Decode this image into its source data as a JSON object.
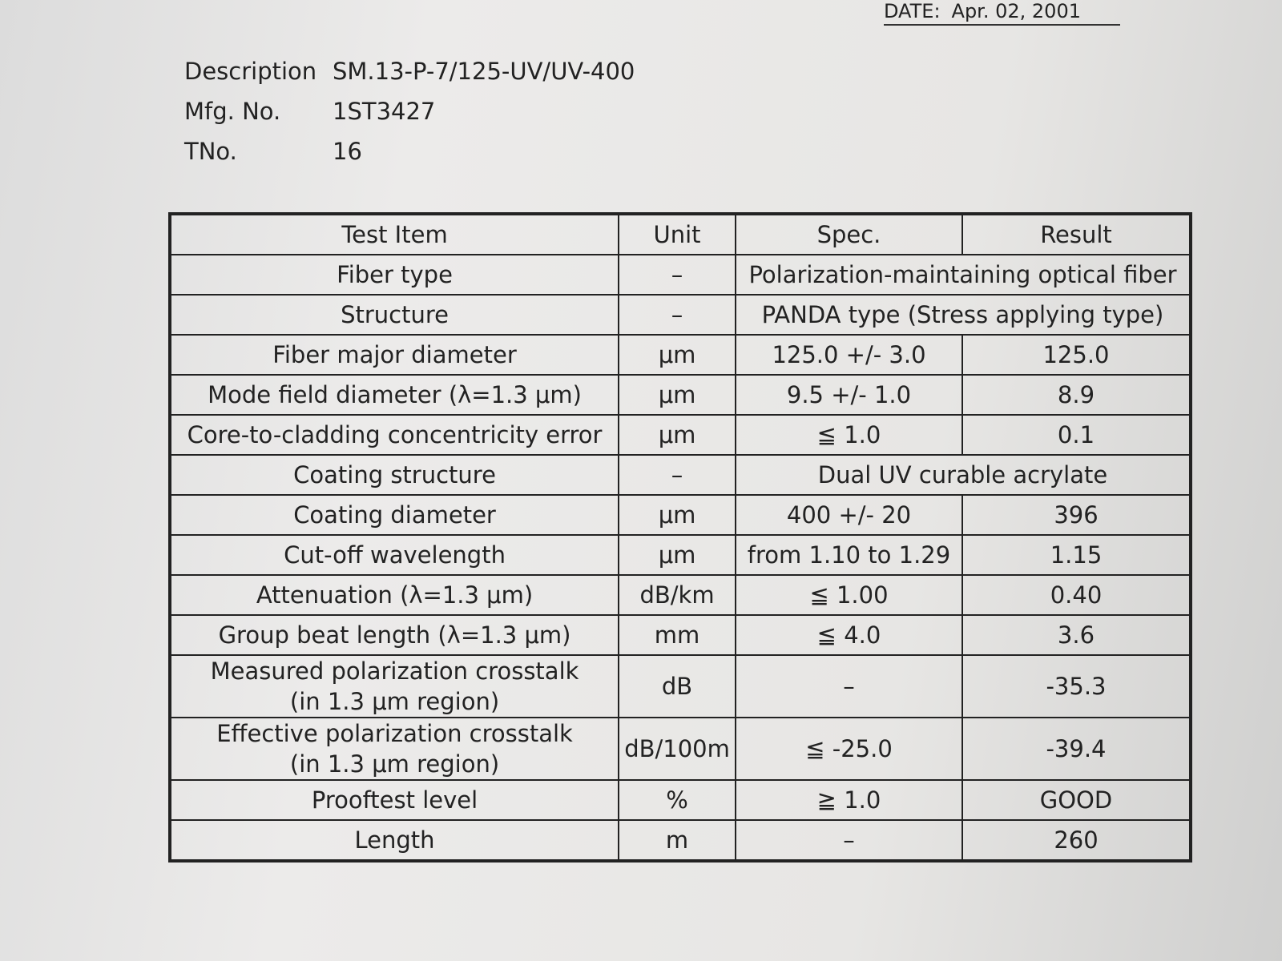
{
  "header": {
    "date_label": "DATE:",
    "date": "Apr. 02, 2001"
  },
  "meta": [
    {
      "label": "Description",
      "value": "SM.13-P-7/125-UV/UV-400"
    },
    {
      "label": "Mfg. No.",
      "value": "1ST3427"
    },
    {
      "label": "TNo.",
      "value": "16"
    }
  ],
  "table": {
    "columns": [
      "Test Item",
      "Unit",
      "Spec.",
      "Result"
    ],
    "rows": [
      [
        "Fiber type",
        "–",
        "Polarization-maintaining optical fiber"
      ],
      [
        "Structure",
        "–",
        "PANDA type (Stress applying type)"
      ],
      [
        "Fiber major diameter",
        "μm",
        "125.0 +/- 3.0",
        "125.0"
      ],
      [
        "Mode field diameter (λ=1.3 μm)",
        "μm",
        "9.5 +/- 1.0",
        "8.9"
      ],
      [
        "Core-to-cladding concentricity error",
        "μm",
        "≦ 1.0",
        "0.1"
      ],
      [
        "Coating structure",
        "–",
        "Dual UV curable acrylate"
      ],
      [
        "Coating diameter",
        "μm",
        "400 +/- 20",
        "396"
      ],
      [
        "Cut-off wavelength",
        "μm",
        "from 1.10 to 1.29",
        "1.15"
      ],
      [
        "Attenuation (λ=1.3 μm)",
        "dB/km",
        "≦ 1.00",
        "0.40"
      ],
      [
        "Group beat length (λ=1.3 μm)",
        "mm",
        "≦ 4.0",
        "3.6"
      ],
      [
        "Measured polarization crosstalk\n(in 1.3 μm region)",
        "dB",
        "–",
        "-35.3"
      ],
      [
        "Effective polarization crosstalk\n(in 1.3 μm region)",
        "dB/100m",
        "≦ -25.0",
        "-39.4"
      ],
      [
        "Prooftest level",
        "%",
        "≧ 1.0",
        "GOOD"
      ],
      [
        "Length",
        "m",
        "–",
        "260"
      ]
    ]
  }
}
